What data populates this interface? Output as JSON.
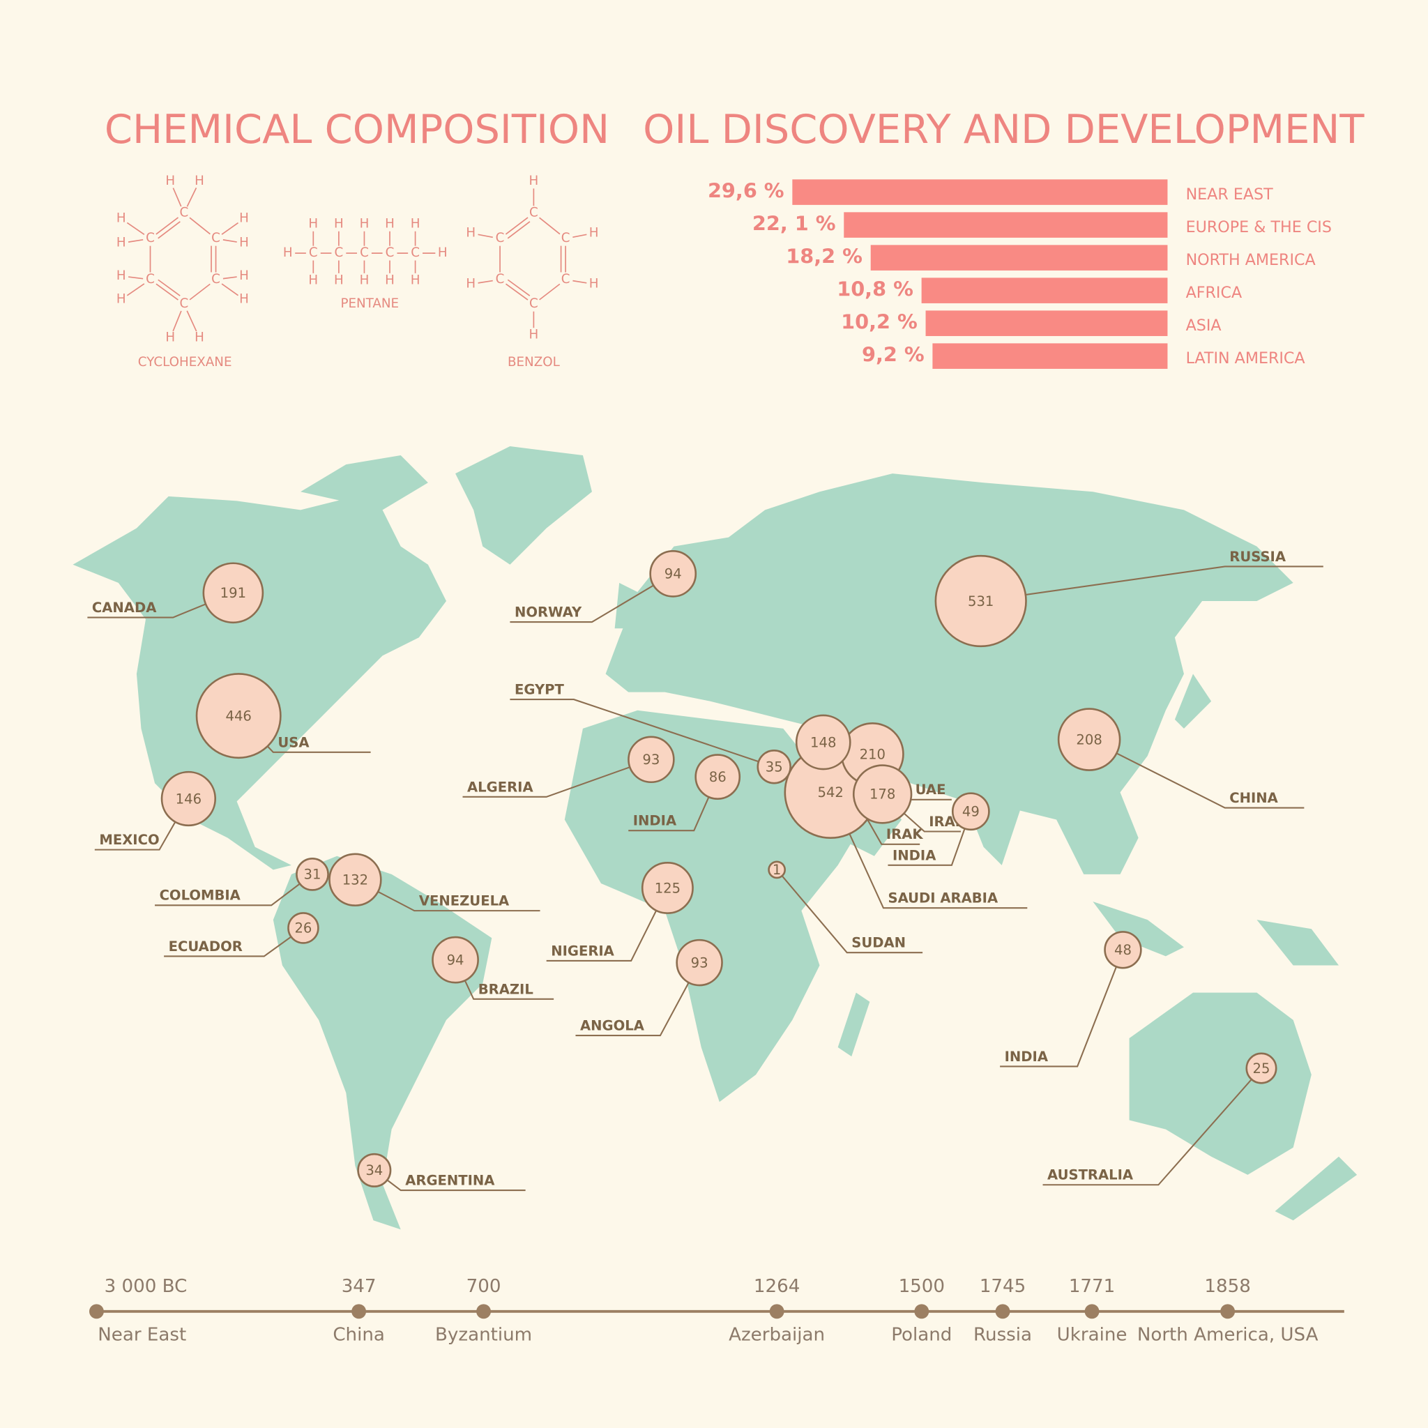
{
  "chemical": {
    "title": "CHEMICAL COMPOSITION",
    "molecules": [
      {
        "name": "CYCLOHEXANE",
        "atoms": [
          "C",
          "C",
          "C",
          "C",
          "C",
          "C",
          "H",
          "H",
          "H",
          "H",
          "H",
          "H",
          "H",
          "H",
          "H",
          "H",
          "H",
          "H"
        ]
      },
      {
        "name": "PENTANE",
        "atoms": [
          "C",
          "C",
          "C",
          "C",
          "C",
          "H",
          "H",
          "H",
          "H",
          "H",
          "H",
          "H",
          "H",
          "H",
          "H",
          "H",
          "H"
        ]
      },
      {
        "name": "BENZOL",
        "atoms": [
          "C",
          "C",
          "C",
          "C",
          "C",
          "C",
          "H",
          "H",
          "H",
          "H",
          "H",
          "H"
        ]
      }
    ]
  },
  "chart_data": [
    {
      "type": "hbar",
      "title": "OIL DISCOVERY AND DEVELOPMENT",
      "categories": [
        "NEAR EAST",
        "EUROPE & THE CIS",
        "NORTH AMERICA",
        "AFRICA",
        "ASIA",
        "LATIN AMERICA"
      ],
      "values": [
        29.6,
        22.1,
        18.2,
        10.8,
        10.2,
        9.2
      ],
      "value_labels": [
        "29,6 %",
        "22, 1 %",
        "18,2 %",
        "10,8 %",
        "10,2 %",
        "9,2 %"
      ],
      "color": "#f98a84",
      "xlim": [
        -25,
        30
      ]
    },
    {
      "type": "bubble",
      "categories": [
        "CANADA",
        "USA",
        "MEXICO",
        "COLOMBIA",
        "VENEZUELA",
        "ECUADOR",
        "BRAZIL",
        "ARGENTINA",
        "NORWAY",
        "EGYPT",
        "ALGERIA",
        "INDIA",
        "NIGERIA",
        "ANGOLA",
        "SUDAN",
        "SAUDI ARABIA",
        "IRAK",
        "UAE",
        "IRAN",
        "INDIA",
        "RUSSIA",
        "CHINA",
        "INDIA",
        "AUSTRALIA"
      ],
      "values": [
        191,
        446,
        146,
        31,
        132,
        26,
        94,
        34,
        94,
        35,
        93,
        86,
        125,
        93,
        1,
        542,
        148,
        210,
        178,
        49,
        531,
        208,
        48,
        25
      ],
      "color": "#f9d5c2"
    }
  ],
  "timeline": {
    "events": [
      {
        "date": "3 000 BC",
        "place": "Near East"
      },
      {
        "date": "347",
        "place": "China"
      },
      {
        "date": "700",
        "place": "Byzantium"
      },
      {
        "date": "1264",
        "place": "Azerbaijan"
      },
      {
        "date": "1500",
        "place": "Poland"
      },
      {
        "date": "1745",
        "place": "Russia"
      },
      {
        "date": "1771",
        "place": "Ukraine"
      },
      {
        "date": "1858",
        "place": "North America, USA"
      }
    ]
  }
}
